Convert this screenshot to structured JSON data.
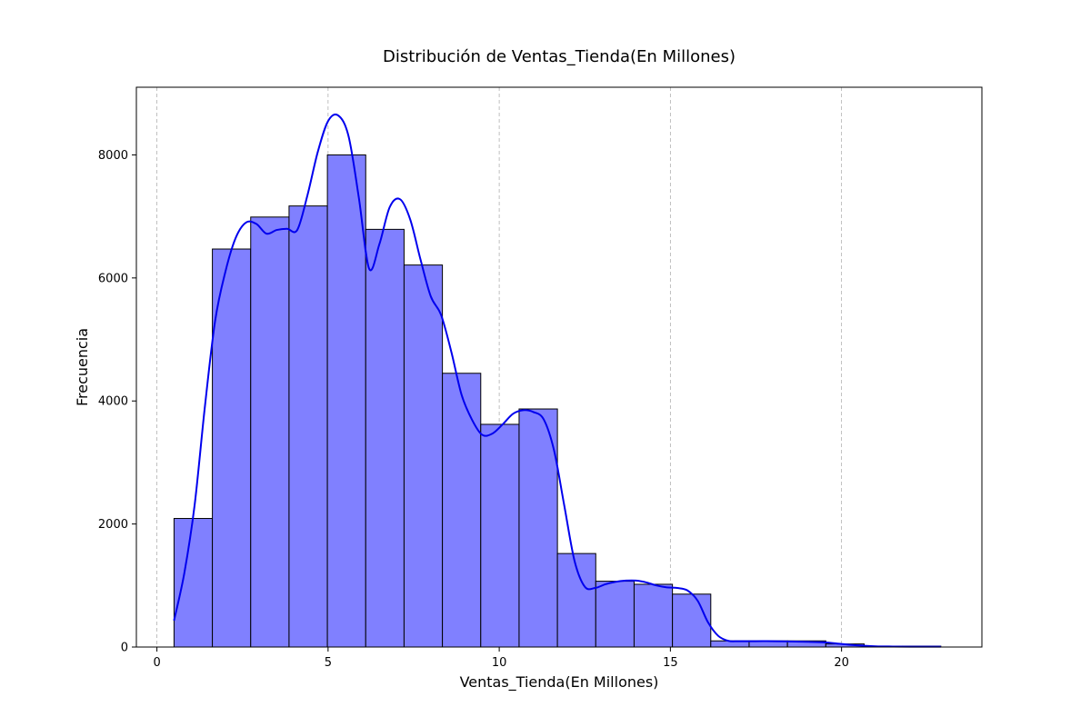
{
  "chart_data": {
    "type": "bar",
    "title": "Distribución de Ventas_Tienda(En Millones)",
    "xlabel": "Ventas_Tienda(En Millones)",
    "ylabel": "Frecuencia",
    "xlim": [
      -0.6,
      24.1
    ],
    "ylim": [
      0,
      9100
    ],
    "xticks": [
      0,
      5,
      10,
      15,
      20
    ],
    "yticks": [
      0,
      2000,
      4000,
      6000,
      8000
    ],
    "grid": "x-dashed",
    "bins": {
      "edges": [
        0.5,
        1.62,
        2.74,
        3.86,
        4.98,
        6.1,
        7.22,
        8.34,
        9.46,
        10.58,
        11.7,
        12.82,
        13.94,
        15.06,
        16.18,
        17.3,
        18.42,
        19.54,
        20.66,
        21.78,
        22.9
      ],
      "counts": [
        2090,
        6470,
        6990,
        7170,
        8000,
        6790,
        6210,
        4450,
        3620,
        3870,
        1520,
        1070,
        1020,
        860,
        100,
        100,
        100,
        50,
        15,
        15
      ]
    },
    "kde": {
      "x": [
        0.5,
        0.8,
        1.1,
        1.4,
        1.7,
        2.0,
        2.3,
        2.6,
        2.9,
        3.2,
        3.5,
        3.8,
        4.1,
        4.4,
        4.7,
        5.0,
        5.3,
        5.6,
        5.9,
        6.2,
        6.5,
        6.8,
        7.1,
        7.4,
        7.7,
        8.0,
        8.3,
        8.6,
        8.9,
        9.2,
        9.5,
        9.8,
        10.1,
        10.4,
        10.7,
        11.0,
        11.3,
        11.6,
        11.9,
        12.2,
        12.5,
        12.8,
        13.1,
        13.4,
        13.7,
        14.0,
        14.3,
        14.6,
        14.9,
        15.2,
        15.5,
        15.8,
        16.1,
        16.4,
        16.7,
        17.0,
        17.5,
        18.0,
        18.5,
        19.0,
        19.5,
        20.0,
        20.5,
        21.0,
        21.5,
        22.0,
        22.5,
        22.9
      ],
      "y": [
        430,
        1200,
        2300,
        3900,
        5300,
        6100,
        6650,
        6900,
        6880,
        6720,
        6780,
        6800,
        6780,
        7350,
        8050,
        8550,
        8640,
        8300,
        7300,
        6150,
        6550,
        7150,
        7280,
        6950,
        6300,
        5700,
        5400,
        4800,
        4100,
        3700,
        3450,
        3470,
        3620,
        3790,
        3850,
        3820,
        3700,
        3200,
        2300,
        1400,
        980,
        960,
        1020,
        1060,
        1080,
        1080,
        1050,
        1000,
        970,
        960,
        920,
        750,
        400,
        180,
        100,
        95,
        95,
        95,
        90,
        85,
        75,
        50,
        25,
        12,
        8,
        6,
        5,
        5
      ]
    }
  }
}
